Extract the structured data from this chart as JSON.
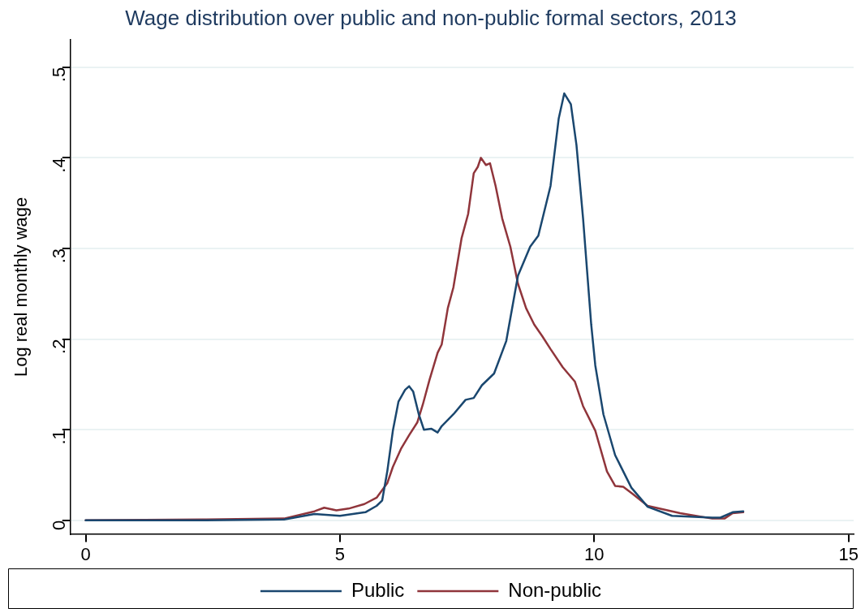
{
  "chart_data": {
    "type": "line",
    "title": "Wage distribution over public and non-public formal sectors, 2013",
    "ylabel": "Log real monthly wage",
    "xlim": [
      -0.3,
      15.1
    ],
    "xticks": [
      0,
      5,
      10,
      15
    ],
    "ylim": [
      -0.015,
      0.53
    ],
    "yticks": [
      {
        "value": 0,
        "label": "0"
      },
      {
        "value": 0.1,
        "label": ".1"
      },
      {
        "value": 0.2,
        "label": ".2"
      },
      {
        "value": 0.3,
        "label": ".3"
      },
      {
        "value": 0.4,
        "label": ".4"
      },
      {
        "value": 0.5,
        "label": ".5"
      }
    ],
    "grid": "y",
    "legend": "bottom",
    "marker": "none",
    "line_style": "solid",
    "series": [
      {
        "name": "Public",
        "color": "#1a476f",
        "x": [
          0,
          2.3,
          3.9,
          4.5,
          5.0,
          5.5,
          5.72,
          5.83,
          5.93,
          6.04,
          6.15,
          6.28,
          6.36,
          6.44,
          6.55,
          6.65,
          6.8,
          6.92,
          7.0,
          7.23,
          7.47,
          7.63,
          7.79,
          8.03,
          8.27,
          8.5,
          8.74,
          8.9,
          9.14,
          9.3,
          9.41,
          9.54,
          9.65,
          9.78,
          9.94,
          10.02,
          10.18,
          10.41,
          10.73,
          11.05,
          11.53,
          12.32,
          12.48,
          12.72,
          12.93
        ],
        "values": [
          0,
          0,
          0.001,
          0.007,
          0.005,
          0.009,
          0.016,
          0.022,
          0.054,
          0.099,
          0.131,
          0.144,
          0.148,
          0.142,
          0.117,
          0.1,
          0.101,
          0.097,
          0.104,
          0.117,
          0.133,
          0.135,
          0.149,
          0.162,
          0.198,
          0.27,
          0.302,
          0.314,
          0.369,
          0.443,
          0.471,
          0.459,
          0.414,
          0.333,
          0.216,
          0.171,
          0.117,
          0.072,
          0.036,
          0.015,
          0.005,
          0.003,
          0.003,
          0.009,
          0.01
        ]
      },
      {
        "name": "Non-public",
        "color": "#90353b",
        "x": [
          0,
          2.3,
          3.9,
          4.5,
          4.69,
          4.93,
          5.17,
          5.48,
          5.72,
          5.93,
          6.04,
          6.2,
          6.36,
          6.52,
          6.63,
          6.76,
          6.92,
          7.0,
          7.12,
          7.23,
          7.39,
          7.52,
          7.63,
          7.71,
          7.77,
          7.87,
          7.95,
          8.06,
          8.19,
          8.35,
          8.5,
          8.66,
          8.82,
          8.98,
          9.14,
          9.38,
          9.62,
          9.78,
          10.02,
          10.25,
          10.41,
          10.57,
          10.76,
          11.05,
          11.69,
          12.32,
          12.56,
          12.72,
          12.93
        ],
        "values": [
          0,
          0.001,
          0.002,
          0.01,
          0.014,
          0.011,
          0.013,
          0.018,
          0.025,
          0.041,
          0.059,
          0.079,
          0.094,
          0.108,
          0.128,
          0.155,
          0.185,
          0.194,
          0.234,
          0.257,
          0.311,
          0.338,
          0.383,
          0.39,
          0.4,
          0.392,
          0.394,
          0.369,
          0.333,
          0.302,
          0.261,
          0.234,
          0.216,
          0.203,
          0.189,
          0.169,
          0.153,
          0.126,
          0.099,
          0.054,
          0.038,
          0.037,
          0.029,
          0.016,
          0.008,
          0.002,
          0.002,
          0.008,
          0.009
        ]
      }
    ]
  }
}
